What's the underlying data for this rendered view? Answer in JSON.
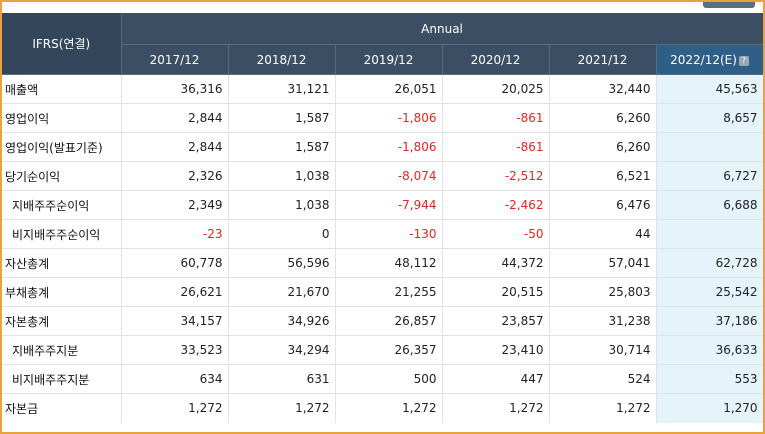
{
  "header": {
    "corner_label": "IFRS(연결)",
    "group_label": "Annual",
    "years": [
      "2017/12",
      "2018/12",
      "2019/12",
      "2020/12",
      "2021/12",
      "2022/12(E)"
    ],
    "estimate_help_icon": "?"
  },
  "rows": [
    {
      "label": "매출액",
      "values": [
        "36,316",
        "31,121",
        "26,051",
        "20,025",
        "32,440",
        "45,563"
      ]
    },
    {
      "label": "영업이익",
      "values": [
        "2,844",
        "1,587",
        "-1,806",
        "-861",
        "6,260",
        "8,657"
      ]
    },
    {
      "label": "영업이익(발표기준)",
      "values": [
        "2,844",
        "1,587",
        "-1,806",
        "-861",
        "6,260",
        ""
      ]
    },
    {
      "label": "당기순이익",
      "values": [
        "2,326",
        "1,038",
        "-8,074",
        "-2,512",
        "6,521",
        "6,727"
      ]
    },
    {
      "label": "지배주주순이익",
      "values": [
        "2,349",
        "1,038",
        "-7,944",
        "-2,462",
        "6,476",
        "6,688"
      ]
    },
    {
      "label": "비지배주주순이익",
      "values": [
        "-23",
        "0",
        "-130",
        "-50",
        "44",
        ""
      ]
    },
    {
      "label": "자산총계",
      "values": [
        "60,778",
        "56,596",
        "48,112",
        "44,372",
        "57,041",
        "62,728"
      ]
    },
    {
      "label": "부채총계",
      "values": [
        "26,621",
        "21,670",
        "21,255",
        "20,515",
        "25,803",
        "25,542"
      ]
    },
    {
      "label": "자본총계",
      "values": [
        "34,157",
        "34,926",
        "26,857",
        "23,857",
        "31,238",
        "37,186"
      ]
    },
    {
      "label": "지배주주지분",
      "values": [
        "33,523",
        "34,294",
        "26,357",
        "23,410",
        "30,714",
        "36,633"
      ]
    },
    {
      "label": "비지배주주지분",
      "values": [
        "634",
        "631",
        "500",
        "447",
        "524",
        "553"
      ]
    },
    {
      "label": "자본금",
      "values": [
        "1,272",
        "1,272",
        "1,272",
        "1,272",
        "1,272",
        "1,270"
      ]
    }
  ],
  "colors": {
    "header_bg": "#3b4e63",
    "estimate_header_bg": "#2f5f86",
    "estimate_cell_bg": "#e5f3fb",
    "negative_text": "#e8251f",
    "frame_border": "#e8a33d"
  }
}
